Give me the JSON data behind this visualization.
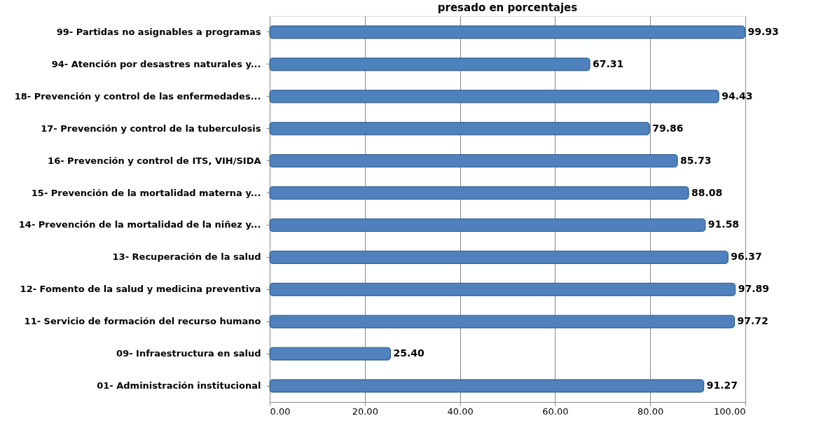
{
  "chart_data": {
    "type": "bar",
    "orientation": "horizontal",
    "title": "presado en porcentajes",
    "categories": [
      "99- Partidas no asignables a  programas",
      "94- Atención por desastres naturales y...",
      "18- Prevención y control de las enfermedades...",
      "17- Prevención y control de la tuberculosis",
      "16- Prevención y control de ITS, VIH/SIDA",
      "15- Prevención de la mortalidad materna y...",
      "14- Prevención de la mortalidad de la niñez y...",
      "13- Recuperación de la salud",
      "12- Fomento de la salud y medicina preventiva",
      "11- Servicio de formación del  recurso humano",
      "09- Infraestructura en salud",
      "01- Administración institucional"
    ],
    "values": [
      99.93,
      67.31,
      94.43,
      79.86,
      85.73,
      88.08,
      91.58,
      96.37,
      97.89,
      97.72,
      25.4,
      91.27
    ],
    "value_labels": [
      "99.93",
      "67.31",
      "94.43",
      "79.86",
      "85.73",
      "88.08",
      "91.58",
      "96.37",
      "97.89",
      "97.72",
      "25.40",
      "91.27"
    ],
    "color": "#4f81bd",
    "xlim": [
      0,
      100
    ],
    "xticks": [
      {
        "value": 0,
        "label": "0.00"
      },
      {
        "value": 20,
        "label": "20.00"
      },
      {
        "value": 40,
        "label": "40.00"
      },
      {
        "value": 60,
        "label": "60.00"
      },
      {
        "value": 80,
        "label": "80.00"
      },
      {
        "value": 100,
        "label": "100.00"
      }
    ],
    "grid": "x"
  }
}
